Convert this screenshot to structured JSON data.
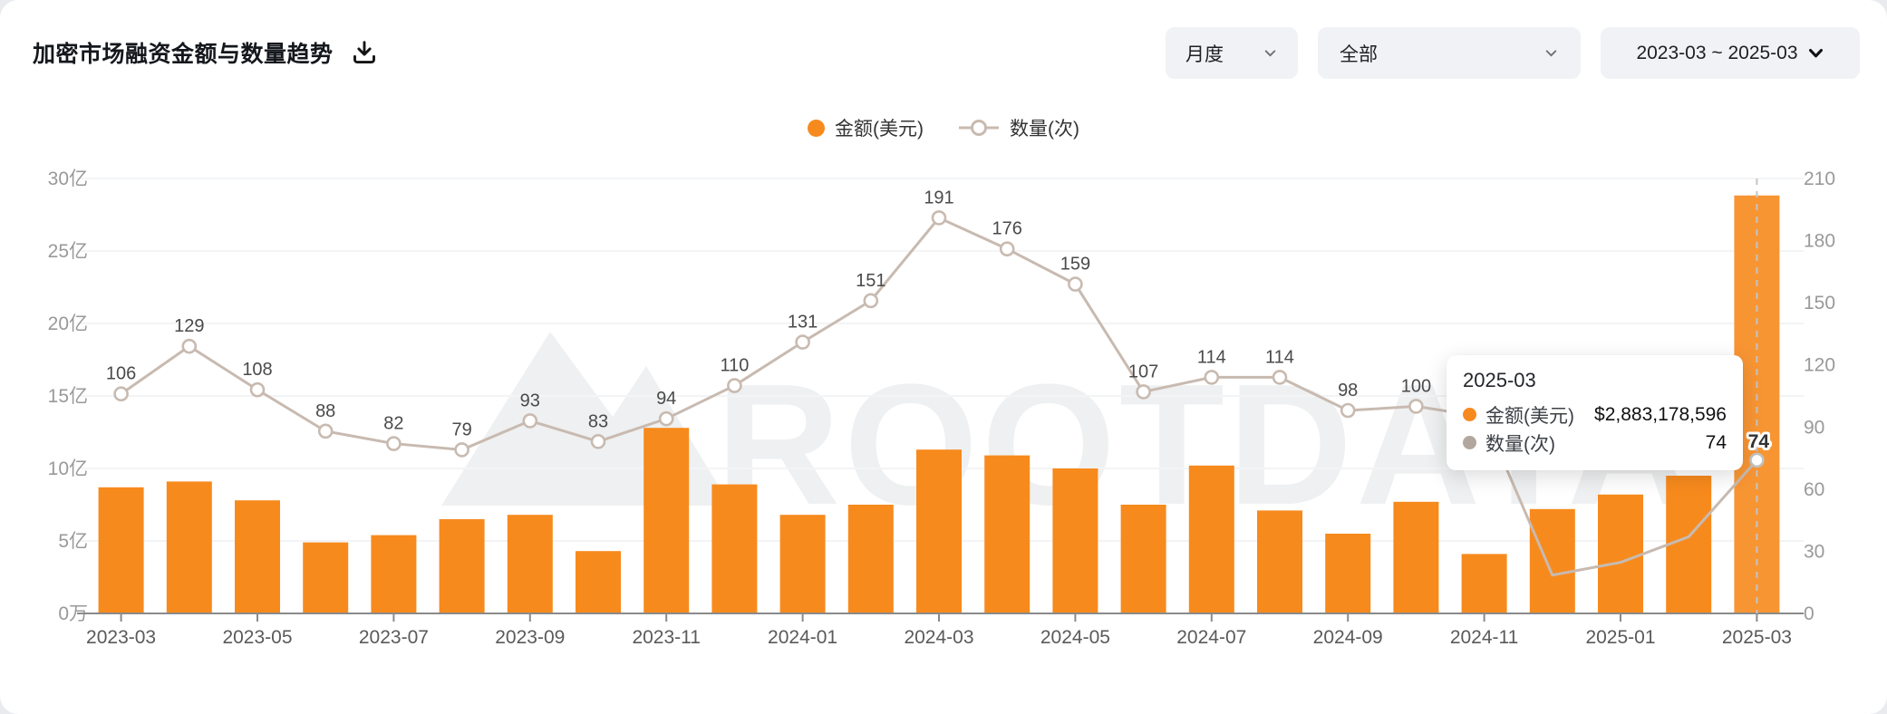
{
  "header": {
    "title": "加密市场融资金额与数量趋势"
  },
  "filters": {
    "period": {
      "value": "月度"
    },
    "category": {
      "value": "全部"
    },
    "date_range": {
      "value": "2023-03 ~ 2025-03"
    }
  },
  "legend": {
    "amount": {
      "label": "金额(美元)",
      "color": "#F78A1D"
    },
    "count": {
      "label": "数量(次)",
      "color": "#C8BAB0"
    }
  },
  "watermark": "ROOTDATA",
  "colors": {
    "bar": "#F78A1D",
    "bar_hover": "#F89533",
    "line": "#C8BAB0",
    "grid": "#f3f4f6",
    "axis": "#8a8a8a",
    "y_label": "#999999",
    "x_label": "#5a5a5a",
    "data_label": "#4a4a4a",
    "pointer_dash": "#c4c4c4"
  },
  "tooltip": {
    "title": "2025-03",
    "rows": [
      {
        "label": "金额(美元)",
        "value": "$2,883,178,596",
        "color": "#F78A1D"
      },
      {
        "label": "数量(次)",
        "value": "74",
        "color": "#b1a79e"
      }
    ],
    "point_label": "74"
  },
  "chart_data": {
    "type": "bar+line dual-axis",
    "title": "加密市场融资金额与数量趋势",
    "categories": [
      "2023-03",
      "2023-04",
      "2023-05",
      "2023-06",
      "2023-07",
      "2023-08",
      "2023-09",
      "2023-10",
      "2023-11",
      "2023-12",
      "2024-01",
      "2024-02",
      "2024-03",
      "2024-04",
      "2024-05",
      "2024-06",
      "2024-07",
      "2024-08",
      "2024-09",
      "2024-10",
      "2024-11",
      "2024-12",
      "2025-01",
      "2025-02",
      "2025-03"
    ],
    "x_axis_visible_labels": [
      "2023-03",
      "2023-05",
      "2023-07",
      "2023-09",
      "2023-11",
      "2024-01",
      "2024-03",
      "2024-05",
      "2024-07",
      "2024-09",
      "2024-11",
      "2025-01",
      "2025-03"
    ],
    "series": [
      {
        "name": "金额(美元)",
        "type": "bar",
        "y_axis": "left",
        "unit": "亿美元(100M USD, estimated from gridlines)",
        "values": [
          8.7,
          9.1,
          7.8,
          4.9,
          5.4,
          6.5,
          6.8,
          4.3,
          12.8,
          8.9,
          6.8,
          7.5,
          11.3,
          10.9,
          10.0,
          7.5,
          10.2,
          7.1,
          5.5,
          7.7,
          4.1,
          7.2,
          8.2,
          9.5,
          28.83
        ],
        "highlight_value_2025_03": "$2,883,178,596"
      },
      {
        "name": "数量(次)",
        "type": "line",
        "y_axis": "right",
        "values": [
          106,
          129,
          108,
          88,
          82,
          79,
          93,
          83,
          94,
          110,
          131,
          151,
          191,
          176,
          159,
          107,
          114,
          114,
          98,
          100,
          null,
          null,
          null,
          null,
          74
        ],
        "note": "2024-11 … 2025-02 points hidden behind tooltip"
      }
    ],
    "left_axis": {
      "tick_labels": [
        "0万",
        "5亿",
        "10亿",
        "15亿",
        "20亿",
        "25亿",
        "30亿"
      ],
      "range_yi": [
        0,
        30
      ]
    },
    "right_axis": {
      "tick_labels": [
        "0",
        "30",
        "60",
        "90",
        "120",
        "150",
        "180",
        "210"
      ],
      "range": [
        0,
        210
      ]
    },
    "grid": true,
    "legend_position": "top-center"
  }
}
